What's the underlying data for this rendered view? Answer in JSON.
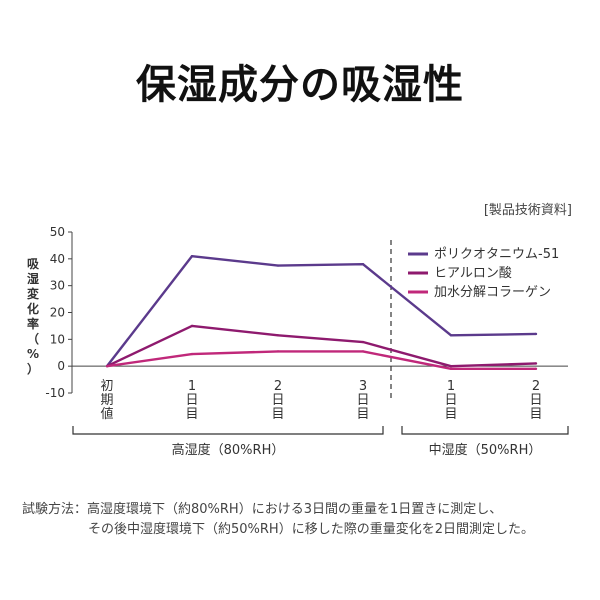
{
  "title": "保湿成分の吸湿性",
  "source_note": "[製品技術資料]",
  "footnote": {
    "line1": "試験方法：高湿度環境下（約80%RH）における3日間の重量を1日置きに測定し、",
    "line2": "その後中湿度環境下（約50%RH）に移した際の重量変化を2日間測定した。"
  },
  "chart_data": {
    "type": "line",
    "ylabel": "吸湿変化率（%）",
    "ylim": [
      -10,
      50
    ],
    "yticks": [
      -10,
      0,
      10,
      20,
      30,
      40,
      50
    ],
    "categories": [
      "初期値",
      "1日目",
      "2日目",
      "3日目",
      "1日目",
      "2日目"
    ],
    "groups": [
      {
        "label": "高湿度（80%RH）",
        "from": 0,
        "to": 3
      },
      {
        "label": "中湿度（50%RH）",
        "from": 4,
        "to": 5
      }
    ],
    "series": [
      {
        "name": "ポリクオタニウム-51",
        "color": "#5b3a8c",
        "values": [
          0,
          41,
          37.5,
          38,
          11.5,
          12
        ]
      },
      {
        "name": "ヒアルロン酸",
        "color": "#8e1a6e",
        "values": [
          0,
          15,
          11.5,
          9,
          0,
          1
        ]
      },
      {
        "name": "加水分解コラーゲン",
        "color": "#c0287a",
        "values": [
          0,
          4.5,
          5.5,
          5.5,
          -1,
          -1
        ]
      }
    ],
    "legend_position": "top-right",
    "grid": false
  }
}
